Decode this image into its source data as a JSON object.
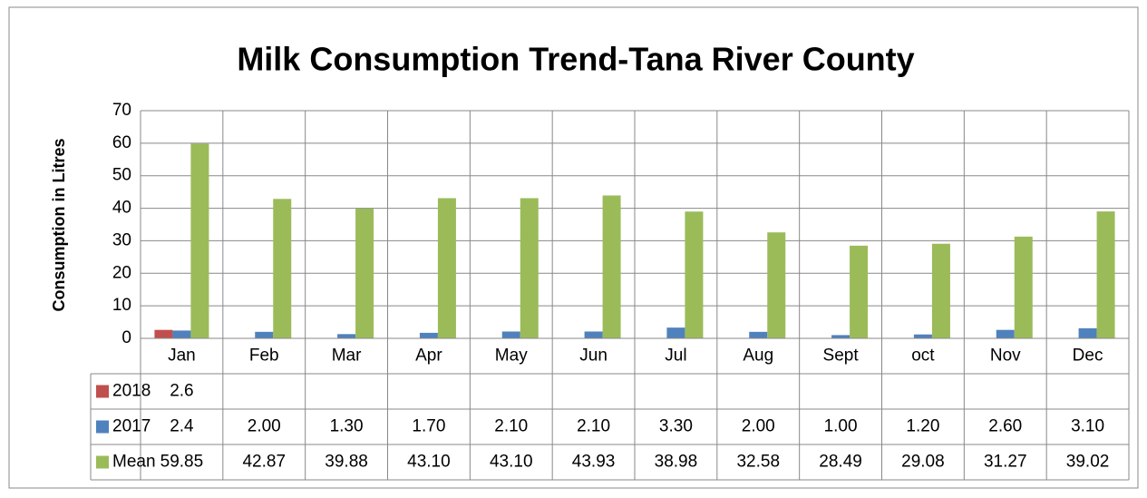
{
  "chart_data": {
    "type": "bar",
    "title": "Milk Consumption Trend-Tana River County",
    "y_label": "Consumption in Litres",
    "categories": [
      "Jan",
      "Feb",
      "Mar",
      "Apr",
      "May",
      "Jun",
      "Jul",
      "Aug",
      "Sept",
      "oct",
      "Nov",
      "Dec"
    ],
    "series": [
      {
        "name": "2018",
        "color": "#c0504d",
        "values": [
          2.6,
          null,
          null,
          null,
          null,
          null,
          null,
          null,
          null,
          null,
          null,
          null
        ],
        "value_labels": [
          "2.6",
          null,
          null,
          null,
          null,
          null,
          null,
          null,
          null,
          null,
          null,
          null
        ]
      },
      {
        "name": "2017",
        "color": "#4f81bd",
        "values": [
          2.4,
          2.0,
          1.3,
          1.7,
          2.1,
          2.1,
          3.3,
          2.0,
          1.0,
          1.2,
          2.6,
          3.1
        ],
        "value_labels": [
          "2.4",
          "2.00",
          "1.30",
          "1.70",
          "2.10",
          "2.10",
          "3.30",
          "2.00",
          "1.00",
          "1.20",
          "2.60",
          "3.10"
        ]
      },
      {
        "name": "Mean",
        "color": "#9bbb59",
        "values": [
          59.85,
          42.87,
          39.88,
          43.1,
          43.1,
          43.93,
          38.98,
          32.58,
          28.49,
          29.08,
          31.27,
          39.02
        ],
        "value_labels": [
          "59.85",
          "42.87",
          "39.88",
          "43.10",
          "43.10",
          "43.93",
          "38.98",
          "32.58",
          "28.49",
          "29.08",
          "31.27",
          "39.02"
        ]
      }
    ],
    "ylim": [
      0,
      70
    ],
    "yticks": [
      0,
      10,
      20,
      30,
      40,
      50,
      60,
      70
    ],
    "grid": true
  }
}
